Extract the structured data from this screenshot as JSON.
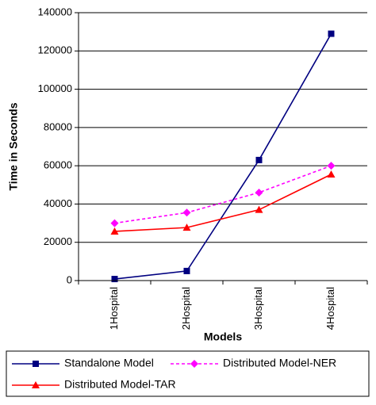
{
  "chart_data": {
    "type": "line",
    "x_label": "Models",
    "y_label": "Time in Seconds",
    "categories": [
      "1Hospital",
      "2Hospital",
      "3Hospital",
      "4Hospital"
    ],
    "series": [
      {
        "name": "Standalone Model",
        "color": "#000080",
        "marker": "square",
        "dashed": false,
        "values": [
          800,
          5000,
          63000,
          129000
        ]
      },
      {
        "name": "Distributed Model-NER",
        "color": "#ff00ff",
        "marker": "diamond",
        "dashed": true,
        "values": [
          30000,
          35500,
          46000,
          60000
        ]
      },
      {
        "name": "Distributed Model-TAR",
        "color": "#ff0000",
        "marker": "triangle",
        "dashed": false,
        "values": [
          25700,
          27700,
          37000,
          55500
        ]
      }
    ],
    "ylim": [
      0,
      140000
    ],
    "yticks": [
      0,
      20000,
      40000,
      60000,
      80000,
      100000,
      120000,
      140000
    ],
    "grid": true,
    "legend": "bottom"
  }
}
